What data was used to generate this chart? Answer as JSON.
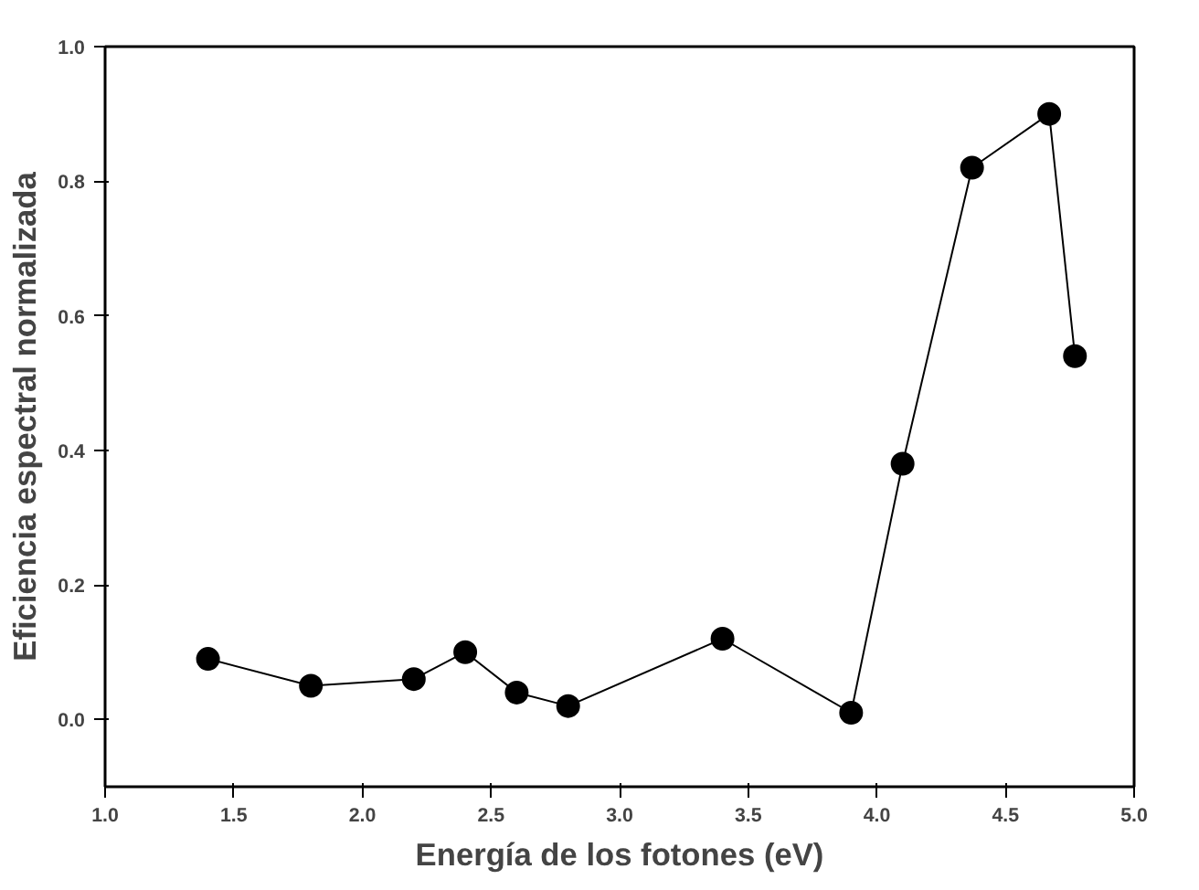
{
  "chart_data": {
    "type": "line",
    "xlabel": "Energía de los fotones (eV)",
    "ylabel": "Eficiencia espectral normalizada",
    "x": [
      1.4,
      1.8,
      2.2,
      2.4,
      2.6,
      2.8,
      3.4,
      3.9,
      4.1,
      4.37,
      4.67,
      4.77
    ],
    "series": [
      {
        "color": "#000000",
        "values": [
          0.09,
          0.05,
          0.06,
          0.1,
          0.04,
          0.02,
          0.12,
          0.01,
          0.38,
          0.82,
          0.9,
          0.54
        ]
      }
    ],
    "xlim": [
      1.0,
      5.0
    ],
    "ylim": [
      -0.1,
      1.0
    ],
    "xticks": [
      {
        "value": 1.0,
        "label": "1.0"
      },
      {
        "value": 1.5,
        "label": "1.5"
      },
      {
        "value": 2.0,
        "label": "2.0"
      },
      {
        "value": 2.5,
        "label": "2.5"
      },
      {
        "value": 3.0,
        "label": "3.0"
      },
      {
        "value": 3.5,
        "label": "3.5"
      },
      {
        "value": 4.0,
        "label": "4.0"
      },
      {
        "value": 4.5,
        "label": "4.5"
      },
      {
        "value": 5.0,
        "label": "5.0"
      }
    ],
    "yticks": [
      {
        "value": 0.0,
        "label": "0.0"
      },
      {
        "value": 0.2,
        "label": "0.2"
      },
      {
        "value": 0.4,
        "label": "0.4"
      },
      {
        "value": 0.6,
        "label": "0.6"
      },
      {
        "value": 0.8,
        "label": "0.8"
      },
      {
        "value": 1.0,
        "label": "1.0"
      }
    ],
    "marker": "circle",
    "line_style": "solid",
    "grid": false
  }
}
